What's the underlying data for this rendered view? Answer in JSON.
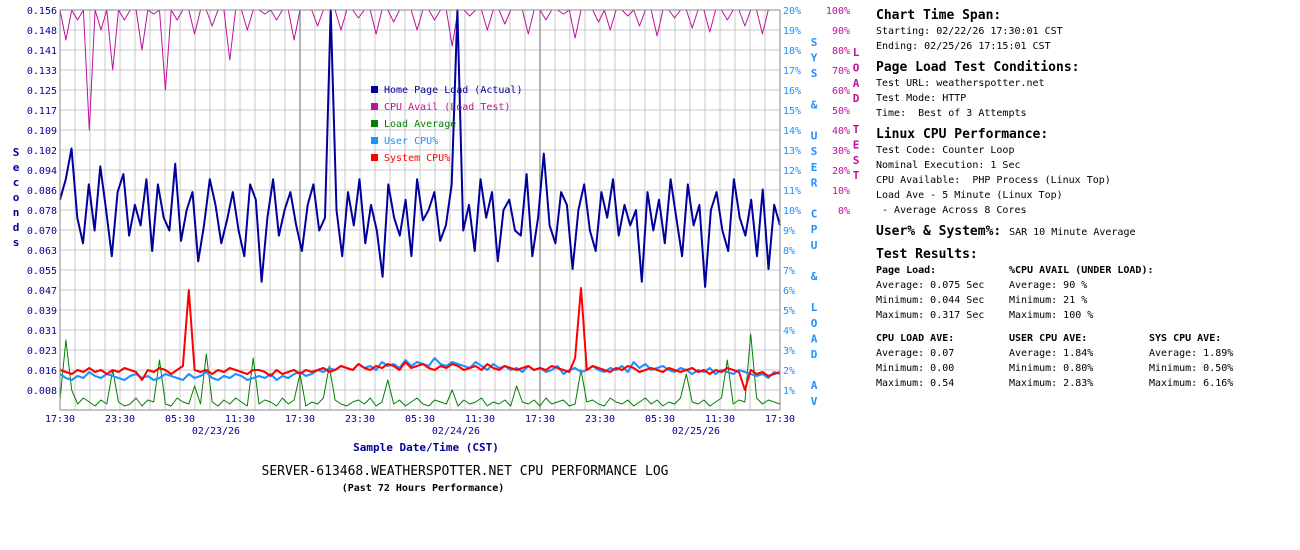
{
  "colors": {
    "page_load": "#00009c",
    "cpu_avail": "#c0109c",
    "load_average": "#008000",
    "user_cpu": "#1e90ff",
    "system_cpu": "#ff0000",
    "grid": "#c8c8c8",
    "axis_label": "#00009c",
    "right_axis1": "#1e90ff",
    "right_axis2": "#c0109c"
  },
  "chart": {
    "title": "SERVER-613468.WEATHERSPOTTER.NET CPU PERFORMANCE LOG",
    "subtitle": "(Past 72 Hours Performance)",
    "xlabel": "Sample Date/Time (CST)",
    "ylabel_left": "Seconds",
    "ylabel_right1": "SYS & USER CPU & LOAD AV",
    "ylabel_right2": "LOAD TEST",
    "yticks_left": [
      "0.156",
      "0.148",
      "0.141",
      "0.133",
      "0.125",
      "0.117",
      "0.109",
      "0.102",
      "0.094",
      "0.086",
      "0.078",
      "0.070",
      "0.063",
      "0.055",
      "0.047",
      "0.039",
      "0.031",
      "0.023",
      "0.016",
      "0.008"
    ],
    "yticks_right1": [
      "20%",
      "19%",
      "18%",
      "17%",
      "16%",
      "15%",
      "14%",
      "13%",
      "12%",
      "11%",
      "10%",
      "9%",
      "8%",
      "7%",
      "6%",
      "5%",
      "4%",
      "3%",
      "2%",
      "1%"
    ],
    "yticks_right2": [
      "100%",
      "90%",
      "80%",
      "70%",
      "60%",
      "50%",
      "40%",
      "30%",
      "20%",
      "10%",
      "0%"
    ],
    "xticks": [
      "17:30",
      "23:30",
      "05:30",
      "11:30",
      "17:30",
      "23:30",
      "05:30",
      "11:30",
      "17:30",
      "23:30",
      "05:30",
      "11:30",
      "17:30"
    ],
    "date_labels": [
      "02/23/26",
      "02/24/26",
      "02/25/26"
    ],
    "legend": [
      {
        "label": "Home Page Load (Actual)",
        "color": "#00009c"
      },
      {
        "label": "CPU Avail (Load Test)",
        "color": "#c0109c"
      },
      {
        "label": "Load Average",
        "color": "#008000"
      },
      {
        "label": "User CPU%",
        "color": "#1e90ff"
      },
      {
        "label": "System CPU%",
        "color": "#ff0000"
      }
    ]
  },
  "chart_data": {
    "type": "line",
    "x_range": [
      "02/22/26 17:30",
      "02/25/26 17:30"
    ],
    "ylim_seconds": [
      0.0,
      0.156
    ],
    "ylim_cpu_pct": [
      0,
      20
    ],
    "ylim_load_test_pct": [
      0,
      100
    ],
    "series": [
      {
        "name": "Home Page Load (Actual)",
        "axis": "seconds",
        "values": [
          0.082,
          0.09,
          0.102,
          0.075,
          0.065,
          0.088,
          0.07,
          0.095,
          0.078,
          0.06,
          0.085,
          0.092,
          0.068,
          0.08,
          0.072,
          0.09,
          0.062,
          0.088,
          0.075,
          0.07,
          0.096,
          0.066,
          0.078,
          0.085,
          0.058,
          0.072,
          0.09,
          0.08,
          0.065,
          0.074,
          0.085,
          0.07,
          0.06,
          0.088,
          0.082,
          0.05,
          0.075,
          0.09,
          0.068,
          0.078,
          0.085,
          0.072,
          0.062,
          0.08,
          0.088,
          0.07,
          0.075,
          0.156,
          0.078,
          0.06,
          0.085,
          0.072,
          0.09,
          0.065,
          0.08,
          0.07,
          0.052,
          0.088,
          0.075,
          0.068,
          0.082,
          0.06,
          0.09,
          0.074,
          0.078,
          0.085,
          0.066,
          0.072,
          0.088,
          0.156,
          0.07,
          0.08,
          0.062,
          0.09,
          0.075,
          0.085,
          0.058,
          0.078,
          0.082,
          0.07,
          0.068,
          0.092,
          0.06,
          0.075,
          0.1,
          0.072,
          0.065,
          0.085,
          0.08,
          0.055,
          0.078,
          0.088,
          0.07,
          0.062,
          0.085,
          0.075,
          0.09,
          0.068,
          0.08,
          0.072,
          0.078,
          0.05,
          0.085,
          0.07,
          0.082,
          0.065,
          0.09,
          0.075,
          0.06,
          0.088,
          0.072,
          0.08,
          0.048,
          0.078,
          0.085,
          0.07,
          0.062,
          0.09,
          0.075,
          0.068,
          0.082,
          0.06,
          0.086,
          0.055,
          0.08,
          0.072
        ]
      },
      {
        "name": "CPU Avail (Load Test)",
        "axis": "load_test_pct",
        "values": [
          100,
          85,
          100,
          95,
          100,
          40,
          100,
          90,
          100,
          70,
          100,
          95,
          100,
          100,
          80,
          100,
          98,
          100,
          60,
          100,
          95,
          100,
          100,
          88,
          100,
          100,
          92,
          100,
          100,
          75,
          100,
          100,
          90,
          100,
          100,
          98,
          100,
          95,
          100,
          100,
          85,
          100,
          100,
          100,
          92,
          100,
          100,
          100,
          90,
          100,
          100,
          96,
          100,
          100,
          88,
          100,
          100,
          94,
          100,
          100,
          100,
          90,
          100,
          100,
          95,
          100,
          100,
          82,
          100,
          100,
          97,
          100,
          100,
          90,
          100,
          100,
          93,
          100,
          100,
          100,
          88,
          100,
          100,
          95,
          100,
          100,
          98,
          100,
          86,
          100,
          100,
          100,
          94,
          100,
          90,
          100,
          100,
          97,
          100,
          92,
          100,
          100,
          87,
          100,
          100,
          96,
          100,
          100,
          91,
          100,
          100,
          89,
          100,
          100,
          95,
          100,
          100,
          92,
          100,
          100,
          88,
          100,
          100,
          100
        ]
      },
      {
        "name": "Load Average",
        "axis": "cpu_pct",
        "values": [
          0.5,
          3.5,
          1.0,
          0.3,
          0.6,
          0.4,
          0.2,
          0.5,
          0.3,
          2.0,
          0.4,
          0.2,
          0.3,
          0.6,
          0.2,
          0.5,
          0.4,
          2.5,
          0.3,
          0.2,
          0.6,
          0.4,
          0.3,
          1.2,
          0.3,
          2.8,
          0.4,
          0.2,
          0.5,
          0.3,
          0.6,
          0.4,
          0.2,
          2.6,
          0.3,
          0.5,
          0.4,
          0.2,
          0.6,
          0.3,
          0.5,
          1.8,
          0.2,
          0.4,
          0.3,
          0.6,
          2.2,
          0.5,
          0.3,
          0.2,
          0.4,
          0.5,
          0.3,
          0.6,
          0.2,
          0.4,
          1.5,
          0.3,
          0.5,
          0.2,
          0.4,
          0.6,
          0.3,
          0.2,
          0.5,
          0.4,
          0.3,
          1.0,
          0.2,
          0.5,
          0.3,
          0.4,
          0.6,
          0.2,
          0.4,
          0.3,
          0.5,
          0.2,
          1.2,
          0.4,
          0.3,
          0.5,
          0.2,
          0.6,
          0.3,
          0.4,
          0.5,
          0.2,
          0.3,
          2.0,
          0.4,
          0.5,
          0.3,
          0.2,
          0.6,
          0.4,
          0.3,
          0.5,
          0.2,
          0.4,
          0.6,
          0.3,
          0.5,
          0.2,
          0.4,
          0.3,
          0.6,
          1.8,
          0.4,
          0.3,
          0.5,
          0.2,
          0.4,
          0.6,
          2.5,
          0.3,
          0.5,
          0.4,
          3.8,
          0.6,
          0.3,
          0.5,
          0.4,
          0.3
        ]
      },
      {
        "name": "User CPU%",
        "axis": "cpu_pct",
        "values": [
          1.8,
          1.6,
          1.5,
          1.7,
          1.6,
          1.9,
          1.7,
          1.6,
          1.8,
          1.7,
          1.6,
          1.5,
          1.7,
          1.8,
          1.6,
          1.7,
          1.5,
          1.6,
          1.8,
          1.7,
          1.6,
          1.5,
          1.8,
          1.6,
          1.7,
          1.9,
          1.6,
          1.5,
          1.7,
          1.6,
          1.8,
          1.7,
          1.5,
          1.6,
          1.7,
          1.6,
          1.8,
          1.5,
          1.7,
          1.6,
          1.8,
          1.9,
          1.7,
          1.8,
          2.0,
          1.9,
          2.1,
          2.0,
          2.2,
          2.1,
          2.0,
          2.3,
          2.1,
          2.2,
          2.0,
          2.4,
          2.2,
          2.3,
          2.1,
          2.5,
          2.2,
          2.4,
          2.3,
          2.2,
          2.6,
          2.3,
          2.2,
          2.4,
          2.3,
          2.2,
          2.1,
          2.4,
          2.2,
          2.0,
          2.3,
          2.1,
          2.2,
          2.0,
          2.1,
          1.9,
          2.2,
          2.0,
          2.1,
          1.9,
          2.0,
          2.2,
          1.8,
          2.0,
          2.1,
          1.9,
          2.0,
          2.2,
          2.0,
          1.9,
          2.1,
          2.0,
          2.2,
          1.9,
          2.4,
          2.1,
          2.3,
          2.0,
          2.1,
          2.2,
          2.0,
          1.9,
          2.1,
          2.0,
          1.8,
          2.0,
          1.9,
          2.1,
          1.8,
          2.0,
          1.9,
          1.8,
          2.0,
          1.9,
          1.8,
          1.7,
          1.8,
          1.6,
          1.9,
          1.8
        ]
      },
      {
        "name": "System CPU%",
        "axis": "cpu_pct",
        "values": [
          2.0,
          1.9,
          1.8,
          2.0,
          1.9,
          2.1,
          1.9,
          2.0,
          1.8,
          2.0,
          1.9,
          2.1,
          2.0,
          1.9,
          1.5,
          2.0,
          1.9,
          2.1,
          2.0,
          1.8,
          2.0,
          2.2,
          6.0,
          2.0,
          1.9,
          2.0,
          1.8,
          2.0,
          1.9,
          2.1,
          2.0,
          1.9,
          1.8,
          2.0,
          2.0,
          1.9,
          1.7,
          2.0,
          1.8,
          1.9,
          2.0,
          1.8,
          2.0,
          1.9,
          2.0,
          2.1,
          1.9,
          2.0,
          2.2,
          2.1,
          2.0,
          2.3,
          2.1,
          2.0,
          2.2,
          2.1,
          2.3,
          2.2,
          2.0,
          2.4,
          2.1,
          2.2,
          2.3,
          2.1,
          2.0,
          2.2,
          2.1,
          2.3,
          2.2,
          2.0,
          2.1,
          2.2,
          2.0,
          2.3,
          2.1,
          2.0,
          2.2,
          2.1,
          2.0,
          2.1,
          2.2,
          2.0,
          2.1,
          2.0,
          2.2,
          2.1,
          2.0,
          1.9,
          2.6,
          6.1,
          2.0,
          2.2,
          2.1,
          2.0,
          1.9,
          2.1,
          2.0,
          2.2,
          2.1,
          1.9,
          2.0,
          2.1,
          2.0,
          1.9,
          2.1,
          2.0,
          1.9,
          2.0,
          2.1,
          1.9,
          2.0,
          1.8,
          2.0,
          1.9,
          2.1,
          2.0,
          1.9,
          1.0,
          2.0,
          1.8,
          1.9,
          1.7,
          1.8,
          1.9
        ]
      }
    ]
  },
  "panel": {
    "span_title": "Chart Time Span:",
    "span_start": "Starting: 02/22/26 17:30:01 CST",
    "span_end": "Ending: 02/25/26 17:15:01 CST",
    "cond_title": "Page Load Test Conditions:",
    "cond_url": "Test URL: weatherspotter.net",
    "cond_mode": "Test Mode: HTTP",
    "cond_time": "Time:  Best of 3 Attempts",
    "cpu_title": "Linux CPU Performance:",
    "cpu_code": "Test Code: Counter Loop",
    "cpu_nominal": "Nominal Execution: 1 Sec",
    "cpu_avail": "CPU Available:  PHP Process (Linux Top)",
    "cpu_load": "Load Ave - 5 Minute (Linux Top)",
    "cpu_cores": " - Average Across 8 Cores",
    "usersys_title": "User% & System%:",
    "usersys_value": "SAR 10 Minute Average",
    "results_title": "Test Results:",
    "pl_head": "Page Load:",
    "pl_avg": "Average: 0.075 Sec",
    "pl_min": "Minimum: 0.044 Sec",
    "pl_max": "Maximum: 0.317 Sec",
    "ca_head": "%CPU AVAIL (UNDER LOAD):",
    "ca_avg": "Average: 90 %",
    "ca_min": "Minimum: 21 %",
    "ca_max": "Maximum: 100 %",
    "la_head": "CPU LOAD AVE:",
    "la_avg": "Average: 0.07",
    "la_min": "Minimum: 0.00",
    "la_max": "Maximum: 0.54",
    "uc_head": "USER CPU AVE:",
    "uc_avg": "Average: 1.84%",
    "uc_min": "Minimum: 0.80%",
    "uc_max": "Maximum: 2.83%",
    "sc_head": "SYS CPU AVE:",
    "sc_avg": "Average: 1.89%",
    "sc_min": "Minimum: 0.50%",
    "sc_max": "Maximum: 6.16%"
  }
}
